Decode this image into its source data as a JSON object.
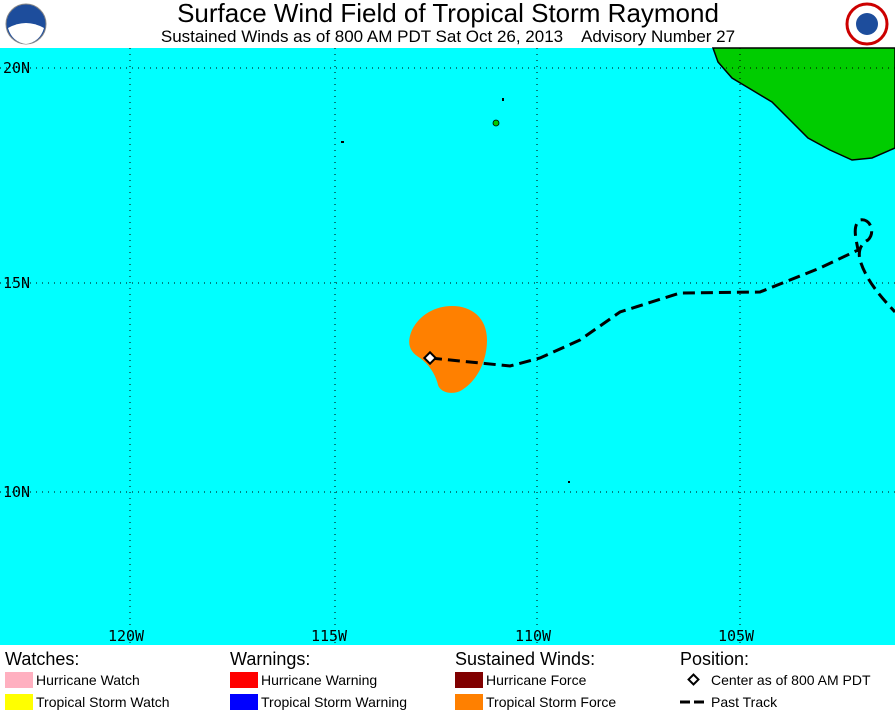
{
  "header": {
    "title": "Surface Wind Field of Tropical Storm Raymond",
    "subtitle": "Sustained Winds as of 800 AM PDT Sat Oct 26, 2013    Advisory Number 27"
  },
  "map": {
    "lat_labels": [
      "20N",
      "15N",
      "10N"
    ],
    "lon_labels": [
      "120W",
      "115W",
      "110W",
      "105W"
    ]
  },
  "legend": {
    "watches": {
      "title": "Watches:",
      "items": [
        "Hurricane Watch",
        "Tropical Storm Watch"
      ]
    },
    "warnings": {
      "title": "Warnings:",
      "items": [
        "Hurricane Warning",
        "Tropical Storm Warning"
      ]
    },
    "winds": {
      "title": "Sustained Winds:",
      "items": [
        "Hurricane Force",
        "Tropical Storm Force"
      ]
    },
    "position": {
      "title": "Position:",
      "items": [
        "Center as of 800 AM PDT",
        "Past Track"
      ]
    }
  }
}
